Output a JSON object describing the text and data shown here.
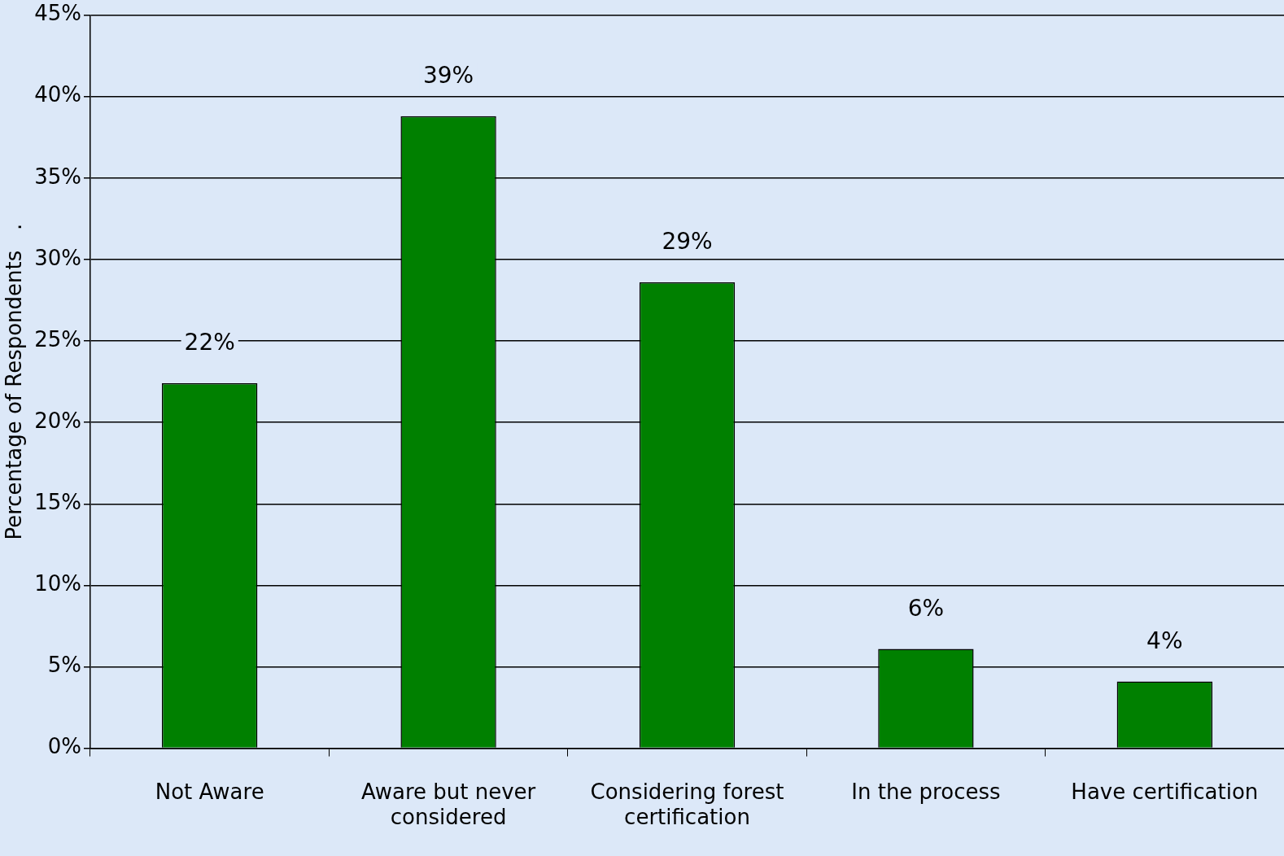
{
  "chart_data": {
    "type": "bar",
    "ylabel": "Percentage of Respondents   .",
    "categories": [
      "Not Aware",
      "Aware but never considered",
      "Considering forest certification",
      "In the process",
      "Have certification"
    ],
    "values": [
      22.4,
      38.8,
      28.6,
      6.1,
      4.1
    ],
    "value_labels": [
      "22%",
      "39%",
      "29%",
      "6%",
      "4%"
    ],
    "color": "#008000",
    "ylim": [
      0,
      45
    ],
    "yticks": [
      {
        "value": 0,
        "label": "0%"
      },
      {
        "value": 5,
        "label": "5%"
      },
      {
        "value": 10,
        "label": "10%"
      },
      {
        "value": 15,
        "label": "15%"
      },
      {
        "value": 20,
        "label": "20%"
      },
      {
        "value": 25,
        "label": "25%"
      },
      {
        "value": 30,
        "label": "30%"
      },
      {
        "value": 35,
        "label": "35%"
      },
      {
        "value": 40,
        "label": "40%"
      },
      {
        "value": 45,
        "label": "45%"
      }
    ],
    "grid": "y",
    "legend": false
  }
}
